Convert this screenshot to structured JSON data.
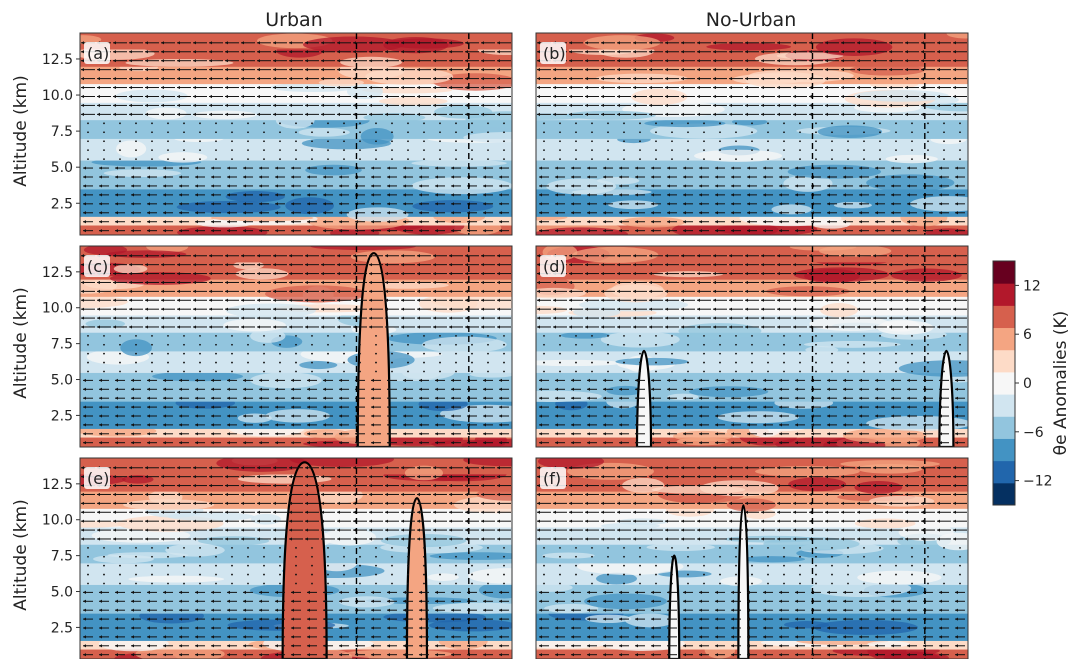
{
  "chart_data": {
    "type": "heatmap",
    "column_titles": [
      "Urban",
      "No-Urban"
    ],
    "ylabel": "Altitude (km)",
    "yticks": [
      "2.5",
      "5.0",
      "7.5",
      "10.0",
      "12.5"
    ],
    "ylim": [
      0.3,
      14.3
    ],
    "colorbar": {
      "label": "θe Anomalies (K)",
      "ticks": [
        "12",
        "6",
        "0",
        "−6",
        "−12"
      ],
      "range": [
        -15,
        15
      ],
      "colors": [
        "#053061",
        "#2166ac",
        "#4393c3",
        "#92c5de",
        "#d1e5f0",
        "#f7f7f7",
        "#fddbc7",
        "#f4a582",
        "#d6604d",
        "#b2182b",
        "#67001f"
      ]
    },
    "panels": [
      {
        "label": "(a)",
        "column": "Urban",
        "row": 1
      },
      {
        "label": "(b)",
        "column": "No-Urban",
        "row": 1
      },
      {
        "label": "(c)",
        "column": "Urban",
        "row": 2
      },
      {
        "label": "(d)",
        "column": "No-Urban",
        "row": 2
      },
      {
        "label": "(e)",
        "column": "Urban",
        "row": 3
      },
      {
        "label": "(f)",
        "column": "No-Urban",
        "row": 3
      }
    ],
    "layers": [
      {
        "alt_max": 1.0,
        "anomaly": 8
      },
      {
        "alt_max": 1.6,
        "anomaly": 3
      },
      {
        "alt_max": 3.5,
        "anomaly": -7
      },
      {
        "alt_max": 5.5,
        "anomaly": -6
      },
      {
        "alt_max": 7.0,
        "anomaly": -4
      },
      {
        "alt_max": 8.3,
        "anomaly": -6
      },
      {
        "alt_max": 9.5,
        "anomaly": -2
      },
      {
        "alt_max": 10.8,
        "anomaly": 1
      },
      {
        "alt_max": 12.0,
        "anomaly": 5
      },
      {
        "alt_max": 13.2,
        "anomaly": 7
      },
      {
        "alt_max": 14.3,
        "anomaly": 9
      }
    ]
  }
}
